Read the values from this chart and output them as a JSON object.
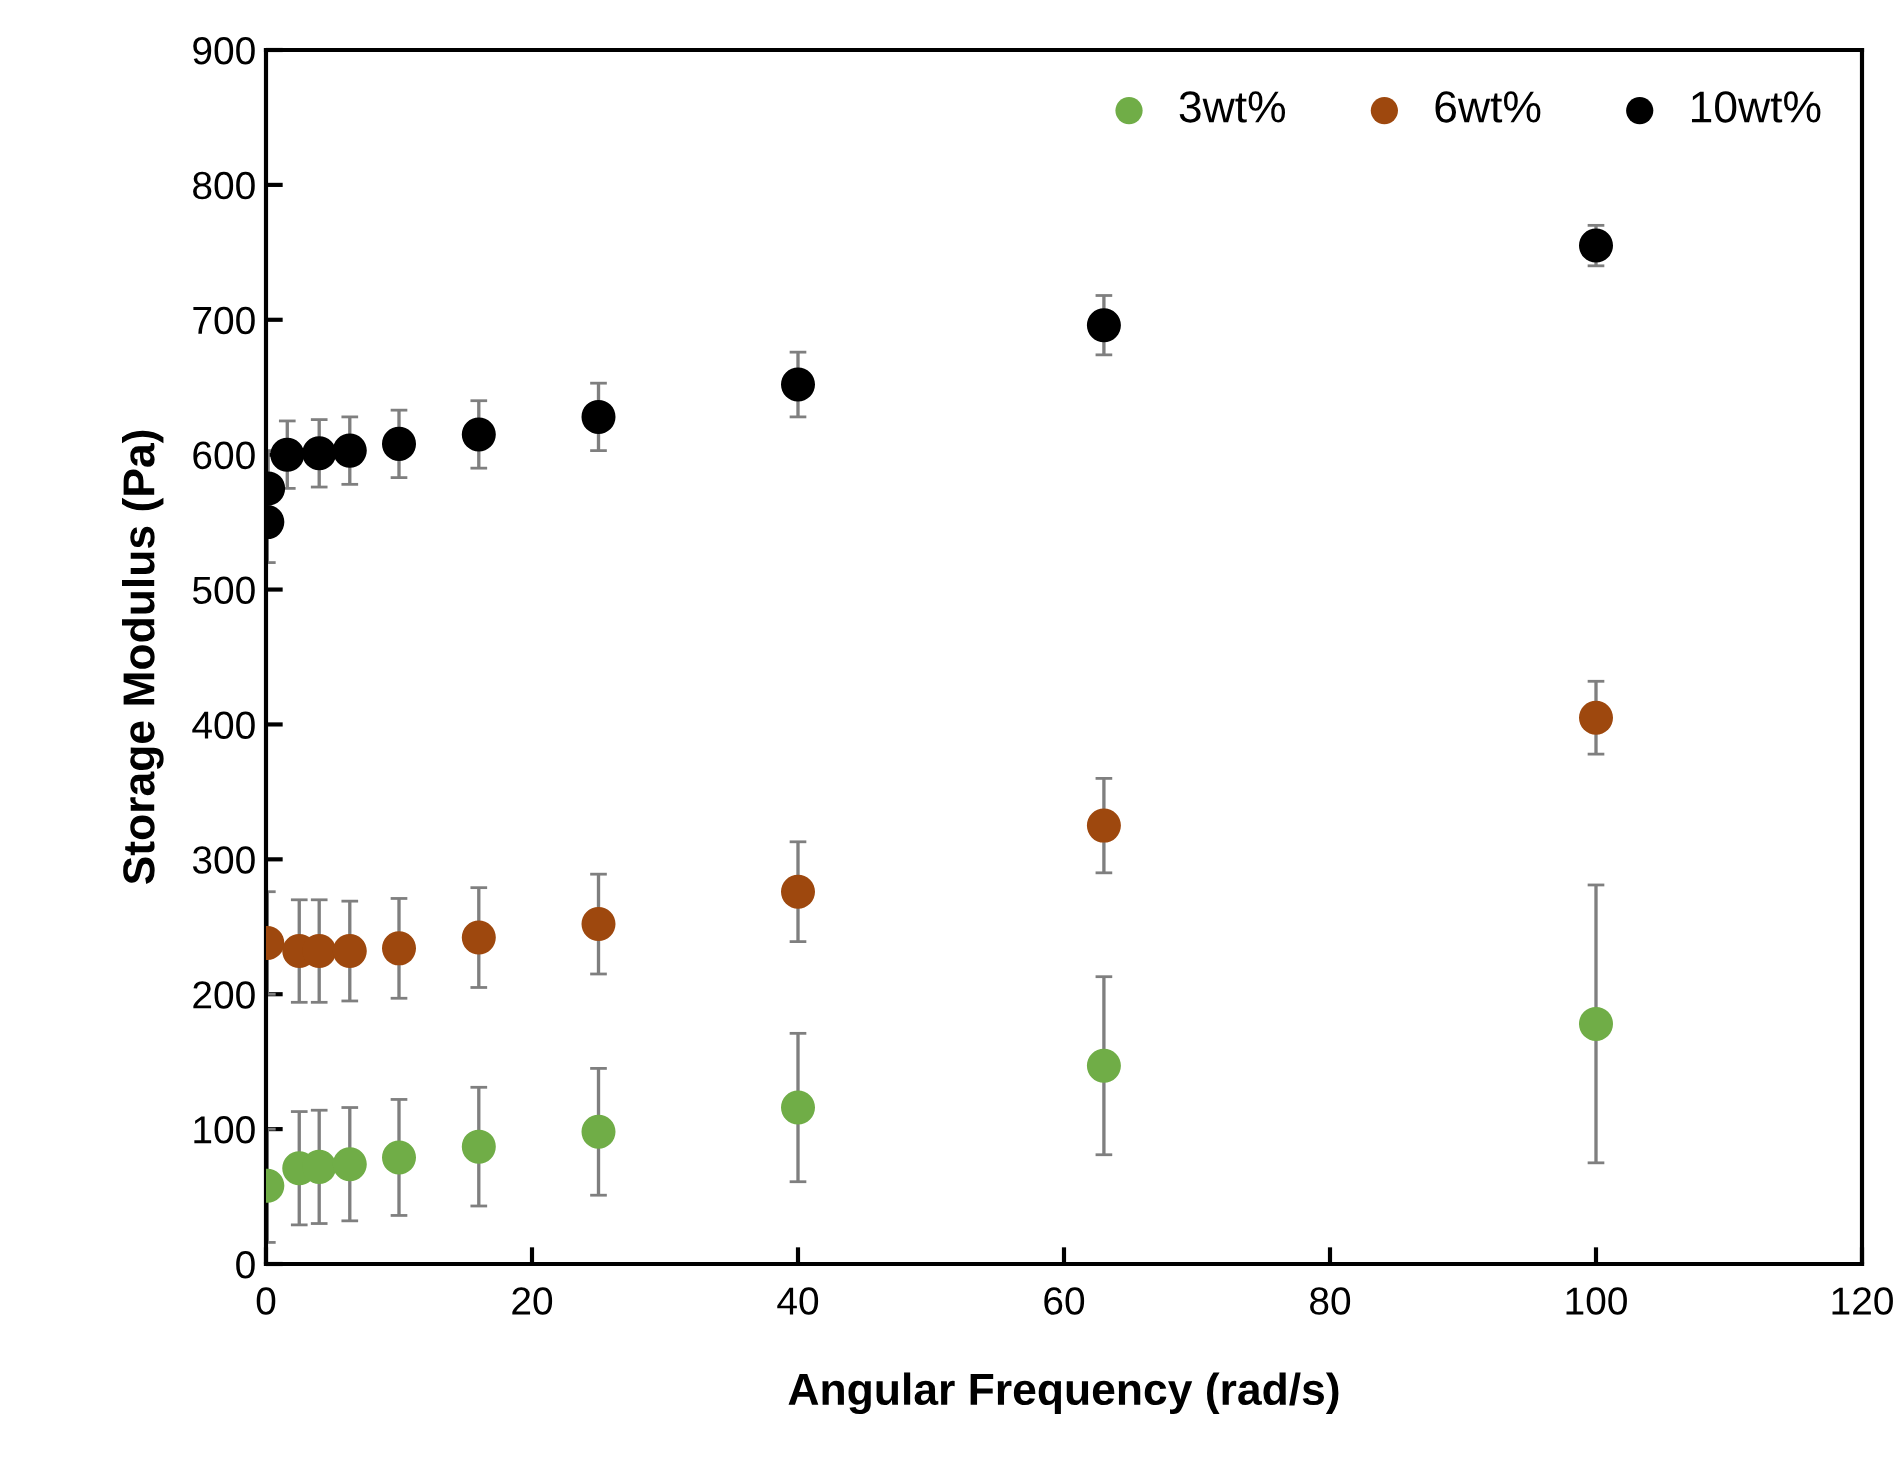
{
  "chart_data": {
    "type": "scatter",
    "xlabel": "Angular Frequency (rad/s)",
    "ylabel": "Storage Modulus (Pa)",
    "x": [
      0.1,
      0.16,
      0.25,
      0.4,
      0.63,
      1,
      1.6,
      2.5,
      4,
      6.3,
      10,
      16,
      25,
      40,
      63,
      100
    ],
    "series": [
      {
        "name": "3wt%",
        "color": "#70ad47",
        "values": [
          58,
          null,
          null,
          null,
          null,
          null,
          null,
          71,
          72,
          74,
          79,
          87,
          98,
          116,
          147,
          178
        ],
        "errors": [
          42,
          null,
          null,
          null,
          null,
          null,
          null,
          42,
          42,
          42,
          43,
          44,
          47,
          55,
          66,
          103
        ]
      },
      {
        "name": "6wt%",
        "color": "#9e480e",
        "values": [
          238,
          null,
          null,
          null,
          null,
          null,
          null,
          232,
          232,
          232,
          234,
          242,
          252,
          276,
          325,
          405
        ],
        "errors": [
          38,
          null,
          null,
          null,
          null,
          null,
          null,
          38,
          38,
          37,
          37,
          37,
          37,
          37,
          35,
          27
        ]
      },
      {
        "name": "10wt%",
        "color": "#000000",
        "values": [
          550,
          575,
          null,
          null,
          null,
          null,
          600,
          null,
          601,
          603,
          608,
          615,
          628,
          652,
          696,
          755
        ],
        "errors": [
          30,
          28,
          null,
          null,
          null,
          null,
          25,
          null,
          25,
          25,
          25,
          25,
          25,
          24,
          22,
          15
        ]
      }
    ],
    "xlim": [
      0,
      120
    ],
    "xticks": [
      0,
      20,
      40,
      60,
      80,
      100,
      120
    ],
    "ylim": [
      0,
      900
    ],
    "yticks": [
      0,
      100,
      200,
      300,
      400,
      500,
      600,
      700,
      800,
      900
    ],
    "marker": "circle",
    "grid": false,
    "legend": "top right"
  }
}
